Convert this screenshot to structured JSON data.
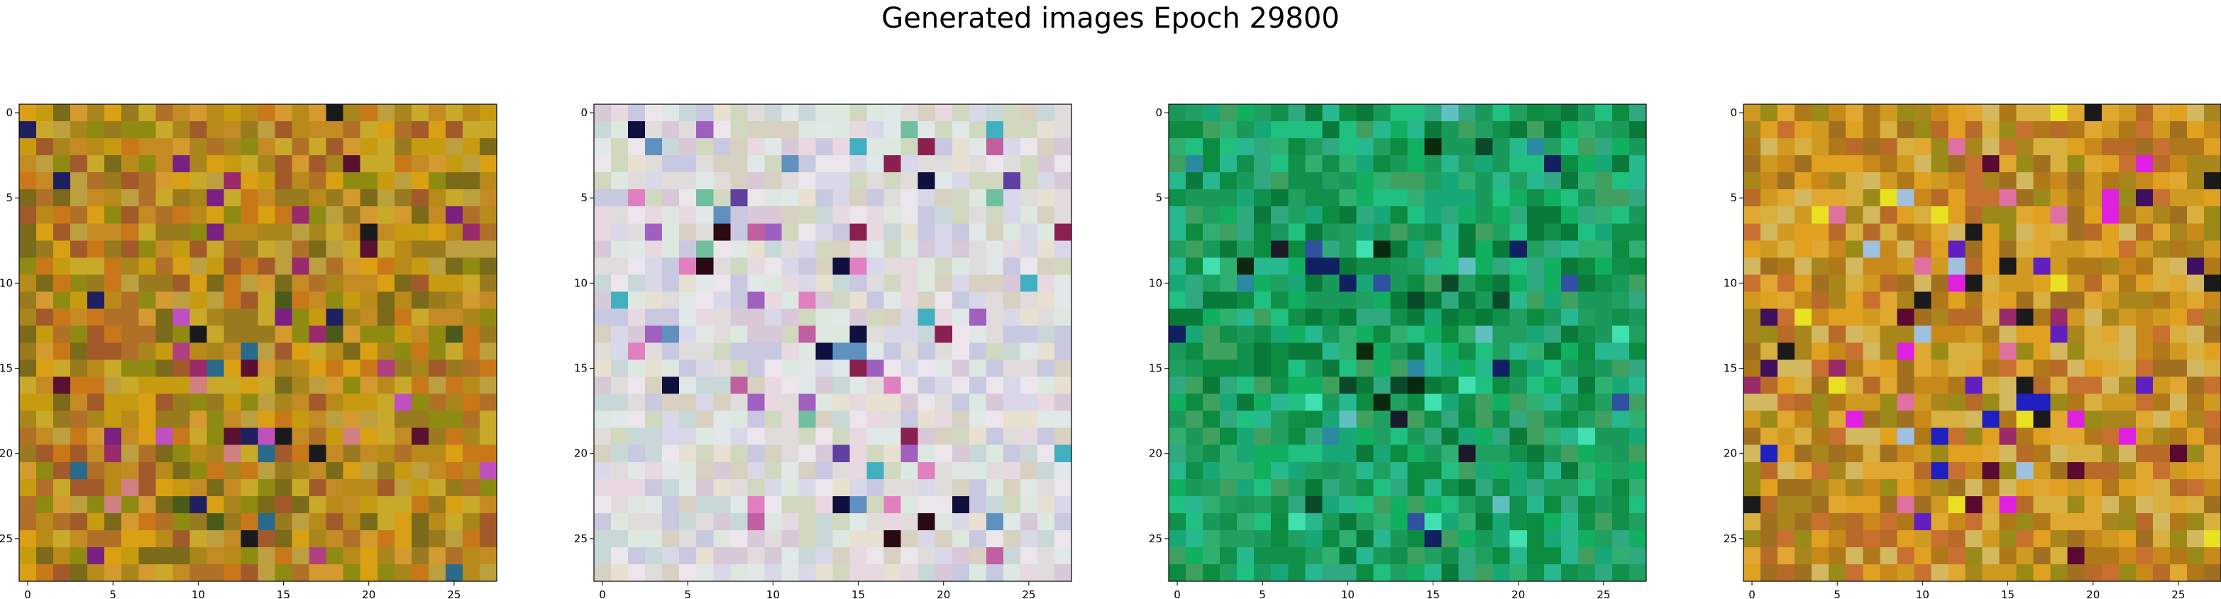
{
  "title": "Generated images Epoch 29800",
  "chart_data": {
    "type": "heatmap",
    "title": "Generated images Epoch 29800",
    "grid": false,
    "panels": [
      {
        "name": "",
        "rows": 28,
        "cols": 28,
        "xlim": [
          -0.5,
          27.5
        ],
        "ylim": [
          27.5,
          -0.5
        ],
        "x_ticks": [
          0,
          5,
          10,
          15,
          20,
          25
        ],
        "y_ticks": [
          0,
          5,
          10,
          15,
          20,
          25
        ],
        "palette": [
          "#b88a1a",
          "#c79b10",
          "#a8861c",
          "#d9a014",
          "#9a7a1e",
          "#c48a24",
          "#b07028",
          "#8f8a12",
          "#c9a92a",
          "#a35a2a",
          "#d49a30",
          "#7a6a1a",
          "#c87818",
          "#bca040"
        ],
        "accents": [
          "#5a1030",
          "#7a2080",
          "#1a1a1a",
          "#b04080",
          "#2a6a8a",
          "#9a2a6a",
          "#202060",
          "#c050c0",
          "#4a5a1a",
          "#d08080"
        ],
        "accent_rate": 0.1,
        "seed": 11
      },
      {
        "name": "",
        "rows": 28,
        "cols": 28,
        "xlim": [
          -0.5,
          27.5
        ],
        "ylim": [
          27.5,
          -0.5
        ],
        "x_ticks": [
          0,
          5,
          10,
          15,
          20,
          25
        ],
        "y_ticks": [
          0,
          5,
          10,
          15,
          20,
          25
        ],
        "palette": [
          "#e0dcdc",
          "#d8d8e8",
          "#e8e0d0",
          "#dce8e0",
          "#d8c8d8",
          "#c8d8d8",
          "#e8d8e0",
          "#d0d8c0",
          "#ece6ec",
          "#c8c8e0",
          "#e0e8e8",
          "#d8d0c0"
        ],
        "accents": [
          "#c060a0",
          "#6040a0",
          "#2a0a10",
          "#8a2050",
          "#40b0c0",
          "#a060c0",
          "#101040",
          "#e080c0",
          "#6090c0",
          "#70c0a0"
        ],
        "accent_rate": 0.12,
        "seed": 23
      },
      {
        "name": "",
        "rows": 28,
        "cols": 28,
        "xlim": [
          -0.5,
          27.5
        ],
        "ylim": [
          27.5,
          -0.5
        ],
        "x_ticks": [
          0,
          5,
          10,
          15,
          20,
          25
        ],
        "y_ticks": [
          0,
          5,
          10,
          15,
          20,
          25
        ],
        "palette": [
          "#20a060",
          "#10904a",
          "#30b070",
          "#18a878",
          "#0c8c40",
          "#28b890",
          "#40a060",
          "#1a9a5a",
          "#10b060",
          "#30a880",
          "#0a7a3a",
          "#20c080"
        ],
        "accents": [
          "#0a2a10",
          "#102060",
          "#2a8aa0",
          "#40e0b0",
          "#1a1a2a",
          "#3050a0",
          "#60c0c0",
          "#0a4a2a"
        ],
        "accent_rate": 0.09,
        "seed": 37
      },
      {
        "name": "",
        "rows": 28,
        "cols": 28,
        "xlim": [
          -0.5,
          27.5
        ],
        "ylim": [
          27.5,
          -0.5
        ],
        "x_ticks": [
          0,
          5,
          10,
          15,
          20,
          25
        ],
        "y_ticks": [
          0,
          5,
          10,
          15,
          20,
          25
        ],
        "palette": [
          "#c8881a",
          "#d09a20",
          "#b07818",
          "#e0a830",
          "#a8861c",
          "#c87030",
          "#d8b040",
          "#9a8a18",
          "#e0a020",
          "#b86a28",
          "#d4b860",
          "#a07020"
        ],
        "accents": [
          "#5a0a30",
          "#6020c0",
          "#1a1a1a",
          "#e020e0",
          "#2020c0",
          "#e070a0",
          "#a0c0e0",
          "#e8e020",
          "#9a2a6a",
          "#401060"
        ],
        "accent_rate": 0.13,
        "seed": 53
      }
    ]
  }
}
